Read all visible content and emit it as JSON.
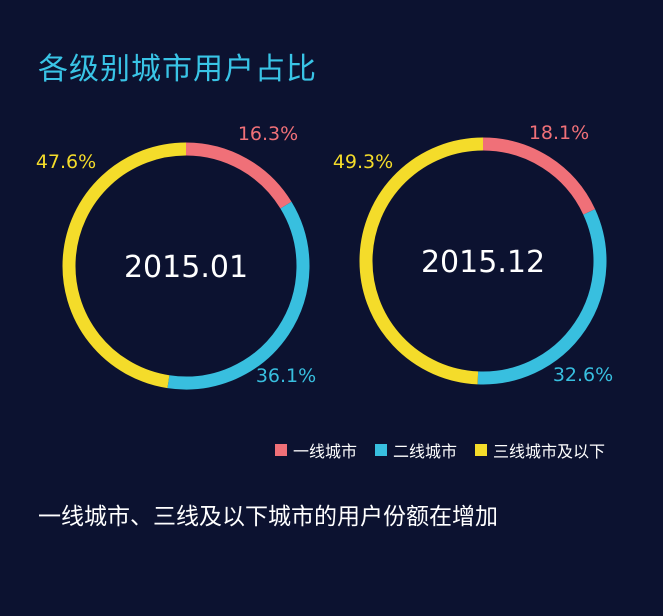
{
  "title": "各级别城市用户占比",
  "caption": "一线城市、三线及以下城市的用户份额在增加",
  "colors": {
    "background": "#0c1230",
    "title": "#39c4e6",
    "tier1": "#f07078",
    "tier2": "#38bfdf",
    "tier3": "#f4dc2a"
  },
  "legend": [
    {
      "label": "一线城市",
      "color": "#f07078"
    },
    {
      "label": "二线城市",
      "color": "#38bfdf"
    },
    {
      "label": "三线城市及以下",
      "color": "#f4dc2a"
    }
  ],
  "chart_data": [
    {
      "type": "pie",
      "center_label": "2015.01",
      "categories": [
        "一线城市",
        "二线城市",
        "三线城市及以下"
      ],
      "values": [
        16.3,
        36.1,
        47.6
      ],
      "labels": [
        "16.3%",
        "36.1%",
        "47.6%"
      ]
    },
    {
      "type": "pie",
      "center_label": "2015.12",
      "categories": [
        "一线城市",
        "二线城市",
        "三线城市及以下"
      ],
      "values": [
        18.1,
        32.6,
        49.3
      ],
      "labels": [
        "18.1%",
        "32.6%",
        "49.3%"
      ]
    }
  ]
}
